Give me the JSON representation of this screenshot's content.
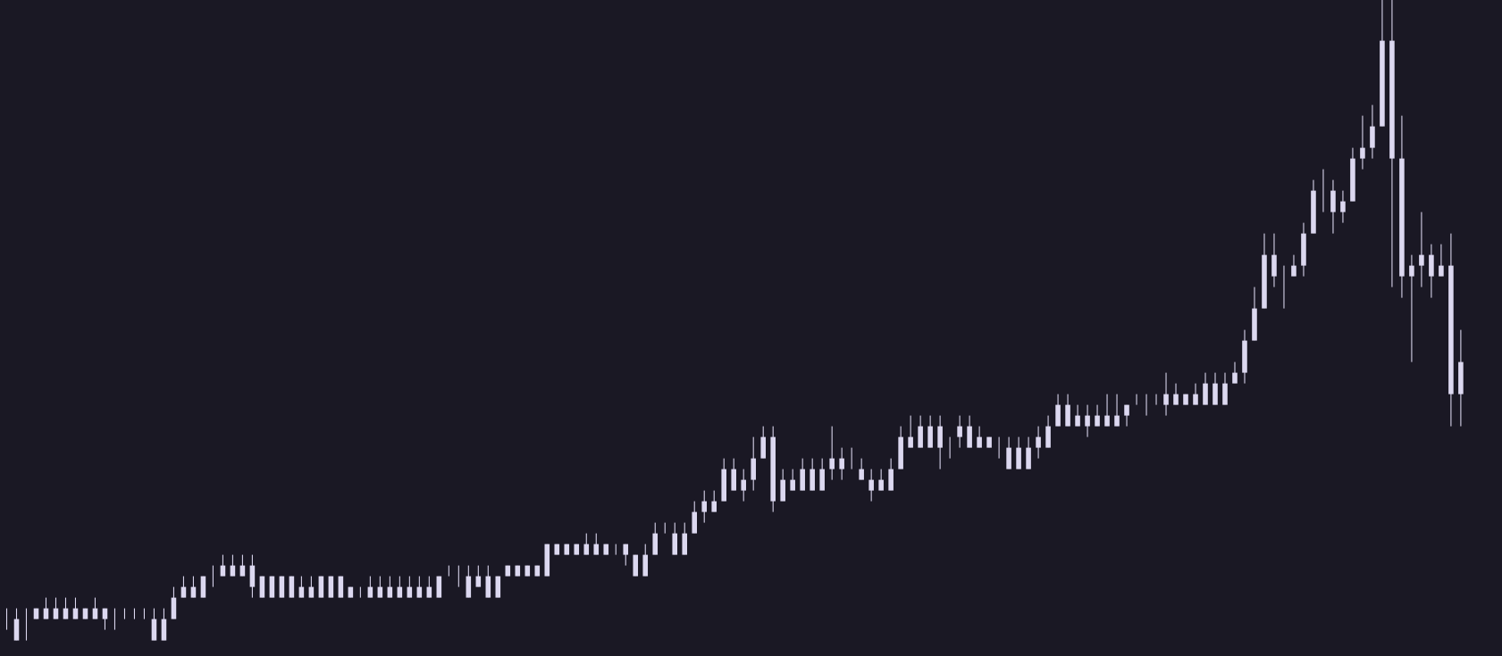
{
  "chart_data": {
    "type": "candlestick",
    "color": "#dcd8f0",
    "ylim": [
      -0.45,
      60.8
    ],
    "open": [
      3,
      3,
      3,
      3,
      3,
      4,
      4,
      4,
      4,
      3,
      4,
      3,
      3,
      3,
      3,
      3,
      1,
      3,
      5,
      6,
      5,
      7,
      7,
      8,
      7,
      8,
      7,
      5,
      5,
      5,
      6,
      5,
      5,
      7,
      5,
      6,
      5,
      5,
      6,
      6,
      6,
      6,
      6,
      6,
      5,
      7,
      7,
      7,
      6,
      7,
      5,
      7,
      7,
      7,
      7,
      7,
      10,
      9,
      10,
      9,
      10,
      9,
      10,
      10,
      9,
      7,
      9,
      11,
      11,
      9,
      11,
      13,
      13,
      14,
      17,
      15,
      16,
      18,
      20,
      14,
      16,
      15,
      17,
      15,
      17,
      18,
      17,
      17,
      16,
      15,
      15,
      17,
      20,
      19,
      21,
      19,
      20,
      20,
      21,
      19,
      20,
      19,
      19,
      17,
      19,
      19,
      19,
      21,
      23,
      21,
      22,
      21,
      22,
      21,
      22,
      23,
      23,
      23,
      23,
      24,
      23,
      24,
      23,
      25,
      23,
      25,
      26,
      29,
      32,
      37,
      35,
      35,
      36,
      39,
      42,
      43,
      41,
      42,
      46,
      47,
      49,
      57,
      46,
      35,
      36,
      37,
      35,
      36,
      24
    ],
    "high": [
      4,
      4,
      4,
      4,
      5,
      5,
      5,
      5,
      4,
      5,
      4,
      4,
      4,
      4,
      4,
      4,
      4,
      6,
      7,
      7,
      7,
      8,
      9,
      9,
      9,
      9,
      7,
      7,
      7,
      7,
      7,
      7,
      7,
      7,
      7,
      6,
      6,
      7,
      7,
      7,
      7,
      7,
      7,
      7,
      7,
      8,
      8,
      8,
      8,
      8,
      7,
      8,
      8,
      8,
      8,
      10,
      10,
      10,
      10,
      11,
      11,
      10,
      10,
      10,
      9,
      10,
      12,
      12,
      12,
      12,
      14,
      15,
      15,
      18,
      18,
      17,
      20,
      21,
      21,
      17,
      17,
      18,
      18,
      18,
      21,
      19,
      19,
      18,
      17,
      17,
      18,
      21,
      22,
      22,
      22,
      22,
      20,
      22,
      22,
      21,
      20,
      20,
      20,
      20,
      20,
      21,
      22,
      24,
      24,
      23,
      23,
      23,
      24,
      24,
      23,
      24,
      24,
      24,
      26,
      25,
      24,
      25,
      26,
      26,
      26,
      27,
      30,
      34,
      39,
      39,
      36,
      37,
      40,
      44,
      45,
      44,
      43,
      47,
      50,
      51,
      61,
      61,
      50,
      37,
      41,
      38,
      38,
      39,
      30
    ],
    "low": [
      2,
      1,
      1,
      3,
      3,
      3,
      3,
      3,
      3,
      3,
      2,
      2,
      3,
      3,
      3,
      1,
      1,
      3,
      5,
      5,
      5,
      6,
      7,
      7,
      7,
      5,
      5,
      5,
      5,
      5,
      5,
      5,
      5,
      5,
      5,
      5,
      5,
      5,
      5,
      5,
      5,
      5,
      5,
      5,
      5,
      7,
      6,
      5,
      6,
      5,
      5,
      7,
      7,
      7,
      7,
      7,
      9,
      9,
      9,
      9,
      9,
      9,
      9,
      8,
      7,
      7,
      9,
      11,
      9,
      9,
      11,
      12,
      13,
      14,
      15,
      14,
      15,
      18,
      13,
      14,
      15,
      15,
      15,
      15,
      16,
      16,
      17,
      16,
      14,
      15,
      15,
      17,
      19,
      19,
      19,
      17,
      18,
      19,
      19,
      19,
      19,
      18,
      17,
      17,
      17,
      18,
      19,
      21,
      21,
      21,
      20,
      21,
      21,
      21,
      21,
      23,
      22,
      23,
      22,
      23,
      23,
      23,
      23,
      23,
      23,
      25,
      25,
      29,
      32,
      34,
      32,
      35,
      35,
      39,
      41,
      39,
      40,
      42,
      45,
      46,
      49,
      34,
      33,
      27,
      34,
      33,
      35,
      21,
      21
    ],
    "close": [
      3,
      1,
      3,
      4,
      4,
      3,
      3,
      3,
      3,
      4,
      3,
      3,
      3,
      3,
      3,
      1,
      3,
      5,
      6,
      5,
      7,
      7,
      8,
      7,
      8,
      6,
      5,
      7,
      7,
      7,
      5,
      6,
      7,
      5,
      7,
      5,
      5,
      6,
      5,
      5,
      5,
      5,
      5,
      5,
      7,
      7,
      7,
      5,
      7,
      5,
      7,
      8,
      8,
      8,
      8,
      10,
      9,
      10,
      9,
      10,
      9,
      10,
      10,
      9,
      7,
      9,
      11,
      11,
      9,
      11,
      13,
      14,
      14,
      17,
      15,
      16,
      18,
      20,
      14,
      16,
      15,
      17,
      15,
      17,
      18,
      17,
      17,
      16,
      15,
      16,
      17,
      20,
      19,
      21,
      19,
      21,
      20,
      21,
      19,
      20,
      19,
      19,
      17,
      19,
      17,
      20,
      21,
      23,
      21,
      22,
      21,
      22,
      21,
      22,
      23,
      23,
      23,
      23,
      24,
      23,
      24,
      23,
      25,
      23,
      25,
      26,
      29,
      32,
      37,
      35,
      35,
      36,
      39,
      43,
      42,
      41,
      42,
      46,
      47,
      49,
      57,
      46,
      35,
      36,
      37,
      35,
      36,
      24,
      27
    ]
  }
}
